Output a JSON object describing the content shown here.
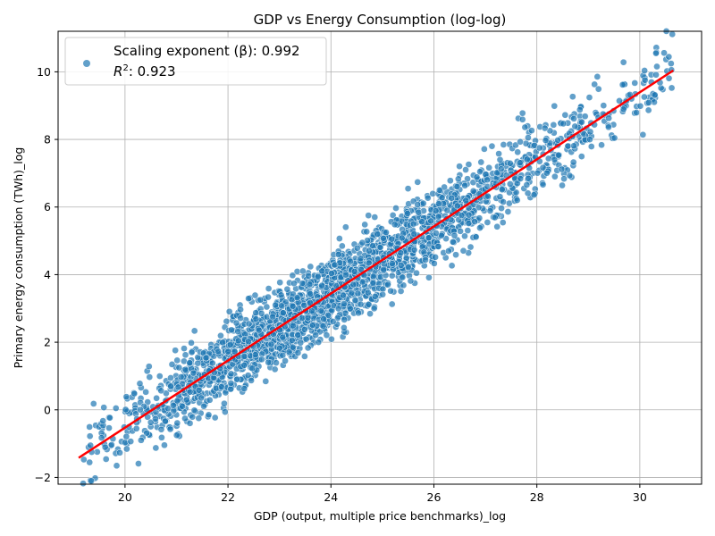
{
  "chart_data": {
    "type": "scatter",
    "title": "GDP vs Energy Consumption (log-log)",
    "xlabel": "GDP (output, multiple price benchmarks)_log",
    "ylabel": "Primary energy consumption (TWh)_log",
    "xlim": [
      18.7,
      31.2
    ],
    "ylim": [
      -2.2,
      11.2
    ],
    "xticks": [
      20,
      22,
      24,
      26,
      28,
      30
    ],
    "yticks": [
      -2,
      0,
      2,
      4,
      6,
      8,
      10
    ],
    "grid": true,
    "legend_position": "top-left",
    "legend_lines": [
      "Scaling exponent (β): 0.992",
      "R",
      "2",
      ": 0.923"
    ],
    "fit_line": {
      "x": [
        19.1,
        30.65
      ],
      "y": [
        -1.42,
        10.04
      ],
      "color": "#ff0000"
    },
    "point_color": "#1f77b4",
    "band_halfwidth": 1.5,
    "series_density": [
      {
        "x0": 19.1,
        "x1": 20.0,
        "count": 40
      },
      {
        "x0": 20.0,
        "x1": 21.0,
        "count": 110
      },
      {
        "x0": 21.0,
        "x1": 22.0,
        "count": 240
      },
      {
        "x0": 22.0,
        "x1": 23.0,
        "count": 340
      },
      {
        "x0": 23.0,
        "x1": 24.0,
        "count": 420
      },
      {
        "x0": 24.0,
        "x1": 25.0,
        "count": 380
      },
      {
        "x0": 25.0,
        "x1": 26.0,
        "count": 300
      },
      {
        "x0": 26.0,
        "x1": 27.0,
        "count": 220
      },
      {
        "x0": 27.0,
        "x1": 28.0,
        "count": 150
      },
      {
        "x0": 28.0,
        "x1": 29.0,
        "count": 100
      },
      {
        "x0": 29.0,
        "x1": 30.0,
        "count": 50
      },
      {
        "x0": 30.0,
        "x1": 30.65,
        "count": 40
      }
    ]
  }
}
